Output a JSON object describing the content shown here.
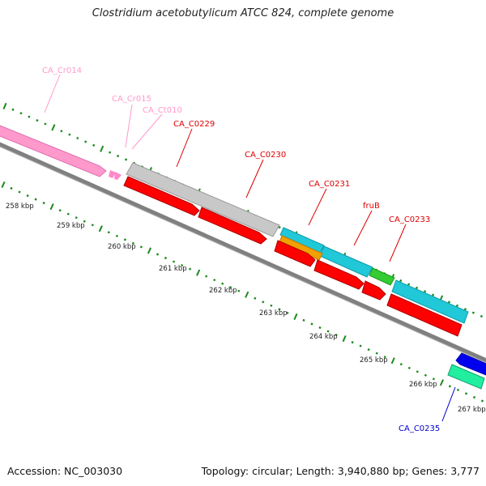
{
  "title": "Clostridium acetobutylicum ATCC 824, complete genome",
  "footer": {
    "accession": "Accession: NC_003030",
    "summary": "Topology: circular; Length: 3,940,880 bp; Genes: 3,777"
  },
  "colors": {
    "backbone": "#808080",
    "tick_green": "#1a8a1a",
    "cds": "#ff0000",
    "rrna": "#ff99cc",
    "trna": "#ff88c8",
    "misc": "#bdbdbd",
    "cyan": "#20c8d8",
    "orange": "#f0a000",
    "green": "#33cc33",
    "blue": "#0000ee",
    "teal": "#22eea0"
  },
  "scale_labels": [
    "258 kbp",
    "259 kbp",
    "260 kbp",
    "261 kbp",
    "262 kbp",
    "263 kbp",
    "264 kbp",
    "265 kbp",
    "266 kbp",
    "267 kbp"
  ],
  "gene_labels": [
    {
      "id": "CA_Cr014",
      "color": "#ff99cc"
    },
    {
      "id": "CA_Cr015",
      "color": "#ff99cc"
    },
    {
      "id": "CA_Ct010",
      "color": "#ff99cc"
    },
    {
      "id": "CA_C0229",
      "color": "#dd0000"
    },
    {
      "id": "CA_C0230",
      "color": "#dd0000"
    },
    {
      "id": "CA_C0231",
      "color": "#dd0000"
    },
    {
      "id": "fruB",
      "color": "#dd0000"
    },
    {
      "id": "CA_C0233",
      "color": "#dd0000"
    },
    {
      "id": "CA_C0235",
      "color": "#0000cc"
    }
  ]
}
